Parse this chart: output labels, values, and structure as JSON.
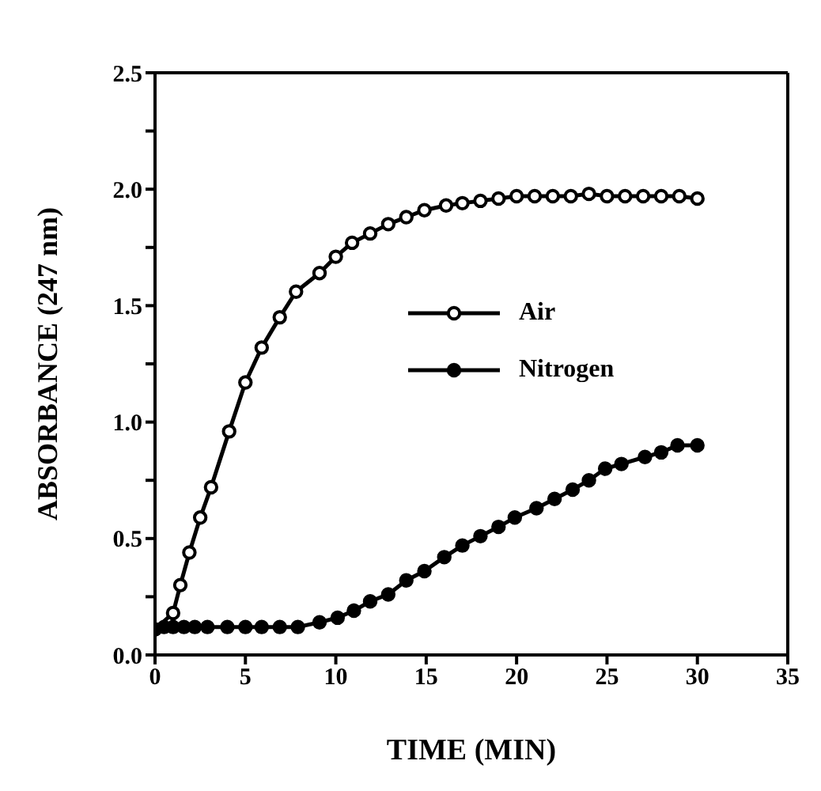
{
  "chart_data": {
    "type": "line",
    "xlabel": "TIME (MIN)",
    "ylabel": "ABSORBANCE (247 nm)",
    "xlim": [
      0,
      35
    ],
    "xticks": [
      0,
      5,
      10,
      15,
      20,
      25,
      30,
      35
    ],
    "ylim": [
      0,
      2.5
    ],
    "yticks": [
      {
        "value": 0,
        "label": "0.0"
      },
      {
        "value": 0.25,
        "label": null
      },
      {
        "value": 0.5,
        "label": "0.5"
      },
      {
        "value": 0.75,
        "label": null
      },
      {
        "value": 1,
        "label": "1.0"
      },
      {
        "value": 1.25,
        "label": null
      },
      {
        "value": 1.5,
        "label": "1.5"
      },
      {
        "value": 1.75,
        "label": null
      },
      {
        "value": 2,
        "label": "2.0"
      },
      {
        "value": 2.25,
        "label": null
      },
      {
        "value": 2.5,
        "label": "2.5"
      }
    ],
    "grid": false,
    "legend": "right",
    "marker": "circle",
    "line_style": "solid",
    "series": [
      {
        "name": "Air",
        "color": "#000000",
        "colors": [
          "#ffffff",
          "#ffffff",
          "#ffffff",
          "#ffffff",
          "#ffffff",
          "#ffffff",
          "#ffffff",
          "#ffffff",
          "#ffffff",
          "#ffffff",
          "#ffffff",
          "#ffffff",
          "#ffffff",
          "#ffffff",
          "#ffffff",
          "#ffffff",
          "#ffffff",
          "#ffffff",
          "#ffffff",
          "#ffffff",
          "#ffffff",
          "#ffffff",
          "#ffffff",
          "#ffffff",
          "#ffffff",
          "#ffffff",
          "#ffffff",
          "#ffffff",
          "#ffffff",
          "#ffffff",
          "#ffffff",
          "#ffffff",
          "#ffffff"
        ],
        "x": [
          0,
          1.0,
          1.4,
          1.9,
          2.5,
          3.1,
          4.1,
          5.0,
          5.9,
          6.9,
          7.8,
          9.1,
          10.0,
          10.9,
          11.9,
          12.9,
          13.9,
          14.9,
          16.1,
          17,
          18,
          19,
          20,
          21,
          22,
          23,
          24,
          25,
          26,
          27,
          28,
          29,
          30
        ],
        "values": [
          0.11,
          0.18,
          0.3,
          0.44,
          0.59,
          0.72,
          0.96,
          1.17,
          1.32,
          1.45,
          1.56,
          1.64,
          1.71,
          1.77,
          1.81,
          1.85,
          1.88,
          1.91,
          1.93,
          1.94,
          1.95,
          1.96,
          1.97,
          1.97,
          1.97,
          1.97,
          1.98,
          1.97,
          1.97,
          1.97,
          1.97,
          1.97,
          1.96
        ]
      },
      {
        "name": "Nitrogen",
        "color": "#000000",
        "x": [
          0,
          0.5,
          1.0,
          1.6,
          2.2,
          2.9,
          4.0,
          5.0,
          5.9,
          6.9,
          7.9,
          9.1,
          10.1,
          11.0,
          11.9,
          12.9,
          13.9,
          14.9,
          16.0,
          17.0,
          18.0,
          19.0,
          19.9,
          21.1,
          22.1,
          23.1,
          24.0,
          24.9,
          25.8,
          27.1,
          28.0,
          28.9,
          30
        ],
        "values": [
          0.11,
          0.12,
          0.12,
          0.12,
          0.12,
          0.12,
          0.12,
          0.12,
          0.12,
          0.12,
          0.12,
          0.14,
          0.16,
          0.19,
          0.23,
          0.26,
          0.32,
          0.36,
          0.42,
          0.47,
          0.51,
          0.55,
          0.59,
          0.63,
          0.67,
          0.71,
          0.75,
          0.8,
          0.82,
          0.85,
          0.87,
          0.9,
          0.9
        ]
      }
    ]
  }
}
